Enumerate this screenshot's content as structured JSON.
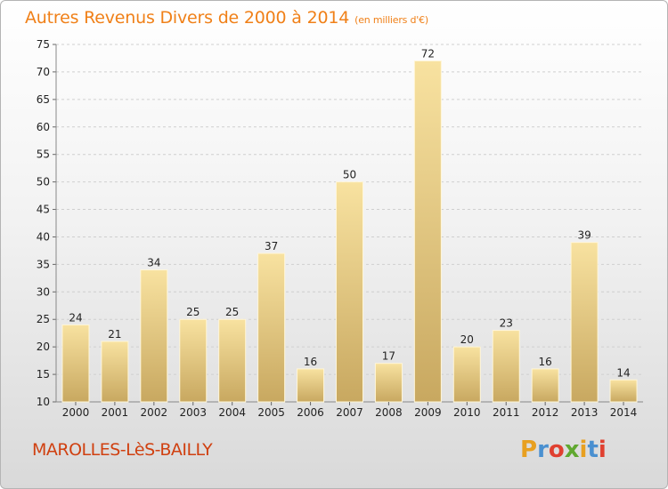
{
  "chart_data": {
    "type": "bar",
    "title": "Autres Revenus Divers de 2000 à 2014",
    "unit": "(en milliers d'€)",
    "categories": [
      "2000",
      "2001",
      "2002",
      "2003",
      "2004",
      "2005",
      "2006",
      "2007",
      "2008",
      "2009",
      "2010",
      "2011",
      "2012",
      "2013",
      "2014"
    ],
    "values": [
      24,
      21,
      34,
      25,
      25,
      37,
      16,
      50,
      17,
      72,
      20,
      23,
      16,
      39,
      14
    ],
    "ylim": [
      10,
      75
    ],
    "yticks": [
      10,
      15,
      20,
      25,
      30,
      35,
      40,
      45,
      50,
      55,
      60,
      65,
      70,
      75
    ],
    "grid": true,
    "bar_color": "#e6c680",
    "bar_color_light": "#f8e2a0",
    "bar_color_dark": "#c8a860"
  },
  "footer": {
    "location": "MAROLLES-LèS-BAILLY",
    "logo_letters": [
      "P",
      "r",
      "o",
      "x",
      "i",
      "t",
      "i"
    ],
    "logo_colors": [
      "#e8a020",
      "#4a90d0",
      "#e04030",
      "#60a830",
      "#e8a020",
      "#4a90d0",
      "#e04030"
    ]
  },
  "colors": {
    "title": "#f08018",
    "location": "#d04010"
  }
}
